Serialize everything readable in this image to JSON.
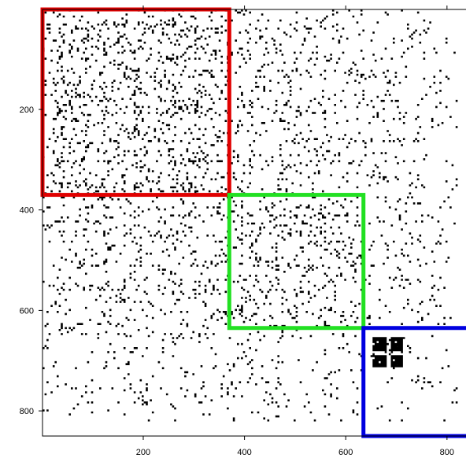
{
  "chart_data": {
    "type": "heatmap",
    "title": "",
    "xlabel": "",
    "ylabel": "",
    "matrix_size": 820,
    "xlim": [
      1,
      850
    ],
    "ylim": [
      850,
      1
    ],
    "x_ticks": [
      200,
      400,
      600,
      800
    ],
    "y_ticks": [
      200,
      400,
      600,
      800
    ],
    "x_tick_labels": [
      "200",
      "400",
      "600",
      "800"
    ],
    "y_tick_labels": [
      "200",
      "400",
      "600",
      "800"
    ],
    "cell_color": "#000000",
    "background_color": "#ffffff",
    "blocks": [
      {
        "name": "",
        "color": "#e00000",
        "rows": [
          1,
          370
        ],
        "cols": [
          1,
          370
        ]
      },
      {
        "name": "",
        "color": "#22e022",
        "rows": [
          370,
          635
        ],
        "cols": [
          370,
          635
        ]
      },
      {
        "name": "",
        "color": "#0000e0",
        "rows": [
          635,
          850
        ],
        "cols": [
          635,
          850
        ]
      }
    ],
    "dense_cluster": {
      "rows": [
        650,
        710
      ],
      "cols": [
        650,
        710
      ]
    }
  }
}
